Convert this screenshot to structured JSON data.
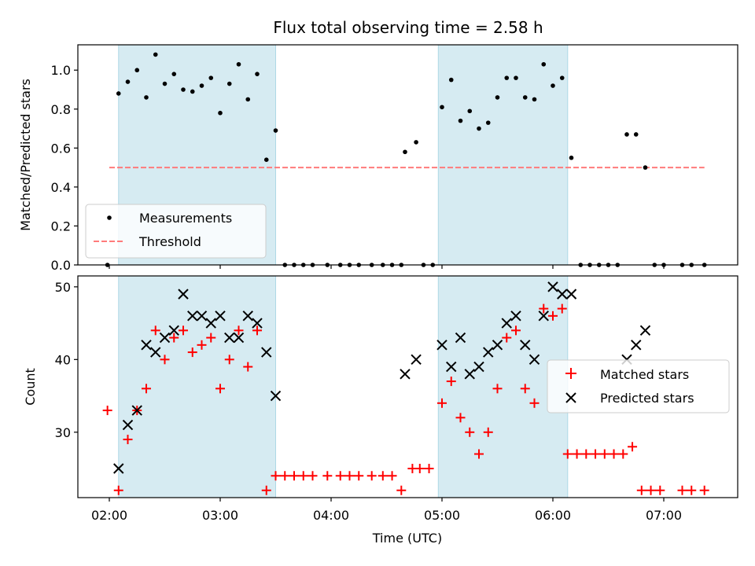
{
  "chart_data": [
    {
      "type": "scatter",
      "title": "Flux total observing time = 2.58 h",
      "xlabel": "",
      "ylabel": "Matched/Predicted stars",
      "ylim": [
        0,
        1.13
      ],
      "yticks": [
        "0.0",
        "0.2",
        "0.4",
        "0.6",
        "0.8",
        "1.0"
      ],
      "legend": {
        "position": "lower-left",
        "entries": [
          "Measurements",
          "Threshold"
        ]
      },
      "threshold": {
        "name": "Threshold",
        "value": 0.5,
        "x_range": [
          "02:00",
          "07:22"
        ],
        "color": "#ff7b7b"
      },
      "series": [
        {
          "name": "Measurements",
          "color": "#000000",
          "points": [
            [
              "01:59",
              0.0
            ],
            [
              "02:05",
              0.88
            ],
            [
              "02:10",
              0.94
            ],
            [
              "02:15",
              1.0
            ],
            [
              "02:20",
              0.86
            ],
            [
              "02:25",
              1.08
            ],
            [
              "02:30",
              0.93
            ],
            [
              "02:35",
              0.98
            ],
            [
              "02:40",
              0.9
            ],
            [
              "02:45",
              0.89
            ],
            [
              "02:50",
              0.92
            ],
            [
              "02:55",
              0.96
            ],
            [
              "03:00",
              0.78
            ],
            [
              "03:05",
              0.93
            ],
            [
              "03:10",
              1.03
            ],
            [
              "03:15",
              0.85
            ],
            [
              "03:20",
              0.98
            ],
            [
              "03:25",
              0.54
            ],
            [
              "03:30",
              0.69
            ],
            [
              "03:35",
              0.0
            ],
            [
              "03:40",
              0.0
            ],
            [
              "03:45",
              0.0
            ],
            [
              "03:50",
              0.0
            ],
            [
              "03:58",
              0.0
            ],
            [
              "04:05",
              0.0
            ],
            [
              "04:10",
              0.0
            ],
            [
              "04:15",
              0.0
            ],
            [
              "04:22",
              0.0
            ],
            [
              "04:28",
              0.0
            ],
            [
              "04:33",
              0.0
            ],
            [
              "04:38",
              0.0
            ],
            [
              "04:40",
              0.58
            ],
            [
              "04:46",
              0.63
            ],
            [
              "04:50",
              0.0
            ],
            [
              "04:55",
              0.0
            ],
            [
              "05:00",
              0.81
            ],
            [
              "05:05",
              0.95
            ],
            [
              "05:10",
              0.74
            ],
            [
              "05:15",
              0.79
            ],
            [
              "05:20",
              0.7
            ],
            [
              "05:25",
              0.73
            ],
            [
              "05:30",
              0.86
            ],
            [
              "05:35",
              0.96
            ],
            [
              "05:40",
              0.96
            ],
            [
              "05:45",
              0.86
            ],
            [
              "05:50",
              0.85
            ],
            [
              "05:55",
              1.03
            ],
            [
              "06:00",
              0.92
            ],
            [
              "06:05",
              0.96
            ],
            [
              "06:10",
              0.55
            ],
            [
              "06:15",
              0.0
            ],
            [
              "06:20",
              0.0
            ],
            [
              "06:25",
              0.0
            ],
            [
              "06:30",
              0.0
            ],
            [
              "06:35",
              0.0
            ],
            [
              "06:40",
              0.67
            ],
            [
              "06:45",
              0.67
            ],
            [
              "06:50",
              0.5
            ],
            [
              "06:55",
              0.0
            ],
            [
              "07:00",
              0.0
            ],
            [
              "07:10",
              0.0
            ],
            [
              "07:15",
              0.0
            ],
            [
              "07:22",
              0.0
            ]
          ]
        }
      ],
      "shaded_regions": [
        [
          "02:05",
          "03:30"
        ],
        [
          "04:58",
          "06:08"
        ]
      ]
    },
    {
      "type": "scatter",
      "title": "",
      "xlabel": "Time (UTC)",
      "ylabel": "Count",
      "ylim": [
        21,
        51.5
      ],
      "yticks": [
        "30",
        "40",
        "50"
      ],
      "xticks": [
        "02:00",
        "03:00",
        "04:00",
        "05:00",
        "06:00",
        "07:00"
      ],
      "legend": {
        "position": "center-right",
        "entries": [
          "Matched stars",
          "Predicted stars"
        ]
      },
      "series": [
        {
          "name": "Matched stars",
          "color": "#ff0000",
          "marker": "+",
          "points": [
            [
              "01:59",
              33
            ],
            [
              "02:05",
              22
            ],
            [
              "02:10",
              29
            ],
            [
              "02:15",
              33
            ],
            [
              "02:20",
              36
            ],
            [
              "02:25",
              44
            ],
            [
              "02:30",
              40
            ],
            [
              "02:35",
              43
            ],
            [
              "02:40",
              44
            ],
            [
              "02:45",
              41
            ],
            [
              "02:50",
              42
            ],
            [
              "02:55",
              43
            ],
            [
              "03:00",
              36
            ],
            [
              "03:05",
              40
            ],
            [
              "03:10",
              44
            ],
            [
              "03:15",
              39
            ],
            [
              "03:20",
              44
            ],
            [
              "03:25",
              22
            ],
            [
              "03:30",
              24
            ],
            [
              "03:35",
              24
            ],
            [
              "03:40",
              24
            ],
            [
              "03:45",
              24
            ],
            [
              "03:50",
              24
            ],
            [
              "03:58",
              24
            ],
            [
              "04:05",
              24
            ],
            [
              "04:10",
              24
            ],
            [
              "04:15",
              24
            ],
            [
              "04:22",
              24
            ],
            [
              "04:28",
              24
            ],
            [
              "04:33",
              24
            ],
            [
              "04:38",
              22
            ],
            [
              "04:44",
              25
            ],
            [
              "04:48",
              25
            ],
            [
              "04:53",
              25
            ],
            [
              "05:00",
              34
            ],
            [
              "05:05",
              37
            ],
            [
              "05:10",
              32
            ],
            [
              "05:15",
              30
            ],
            [
              "05:20",
              27
            ],
            [
              "05:25",
              30
            ],
            [
              "05:30",
              36
            ],
            [
              "05:35",
              43
            ],
            [
              "05:40",
              44
            ],
            [
              "05:45",
              36
            ],
            [
              "05:50",
              34
            ],
            [
              "05:55",
              47
            ],
            [
              "06:00",
              46
            ],
            [
              "06:05",
              47
            ],
            [
              "06:08",
              27
            ],
            [
              "06:13",
              27
            ],
            [
              "06:18",
              27
            ],
            [
              "06:23",
              27
            ],
            [
              "06:28",
              27
            ],
            [
              "06:33",
              27
            ],
            [
              "06:38",
              27
            ],
            [
              "06:43",
              28
            ],
            [
              "06:48",
              22
            ],
            [
              "06:53",
              22
            ],
            [
              "06:58",
              22
            ],
            [
              "07:10",
              22
            ],
            [
              "07:15",
              22
            ],
            [
              "07:22",
              22
            ]
          ]
        },
        {
          "name": "Predicted stars",
          "color": "#000000",
          "marker": "x",
          "points": [
            [
              "02:05",
              25
            ],
            [
              "02:10",
              31
            ],
            [
              "02:15",
              33
            ],
            [
              "02:20",
              42
            ],
            [
              "02:25",
              41
            ],
            [
              "02:30",
              43
            ],
            [
              "02:35",
              44
            ],
            [
              "02:40",
              49
            ],
            [
              "02:45",
              46
            ],
            [
              "02:50",
              46
            ],
            [
              "02:55",
              45
            ],
            [
              "03:00",
              46
            ],
            [
              "03:05",
              43
            ],
            [
              "03:10",
              43
            ],
            [
              "03:15",
              46
            ],
            [
              "03:20",
              45
            ],
            [
              "03:25",
              41
            ],
            [
              "03:30",
              35
            ],
            [
              "04:40",
              38
            ],
            [
              "04:46",
              40
            ],
            [
              "05:00",
              42
            ],
            [
              "05:05",
              39
            ],
            [
              "05:10",
              43
            ],
            [
              "05:15",
              38
            ],
            [
              "05:20",
              39
            ],
            [
              "05:25",
              41
            ],
            [
              "05:30",
              42
            ],
            [
              "05:35",
              45
            ],
            [
              "05:40",
              46
            ],
            [
              "05:45",
              42
            ],
            [
              "05:50",
              40
            ],
            [
              "05:55",
              46
            ],
            [
              "06:00",
              50
            ],
            [
              "06:05",
              49
            ],
            [
              "06:10",
              49
            ],
            [
              "06:40",
              40
            ],
            [
              "06:45",
              42
            ],
            [
              "06:50",
              44
            ]
          ]
        }
      ],
      "shaded_regions": [
        [
          "02:05",
          "03:30"
        ],
        [
          "04:58",
          "06:08"
        ]
      ]
    }
  ],
  "colors": {
    "shade": "#add8e6",
    "threshold": "#ff7b7b",
    "measurements": "#000000",
    "matched": "#ff0000",
    "predicted": "#000000"
  }
}
